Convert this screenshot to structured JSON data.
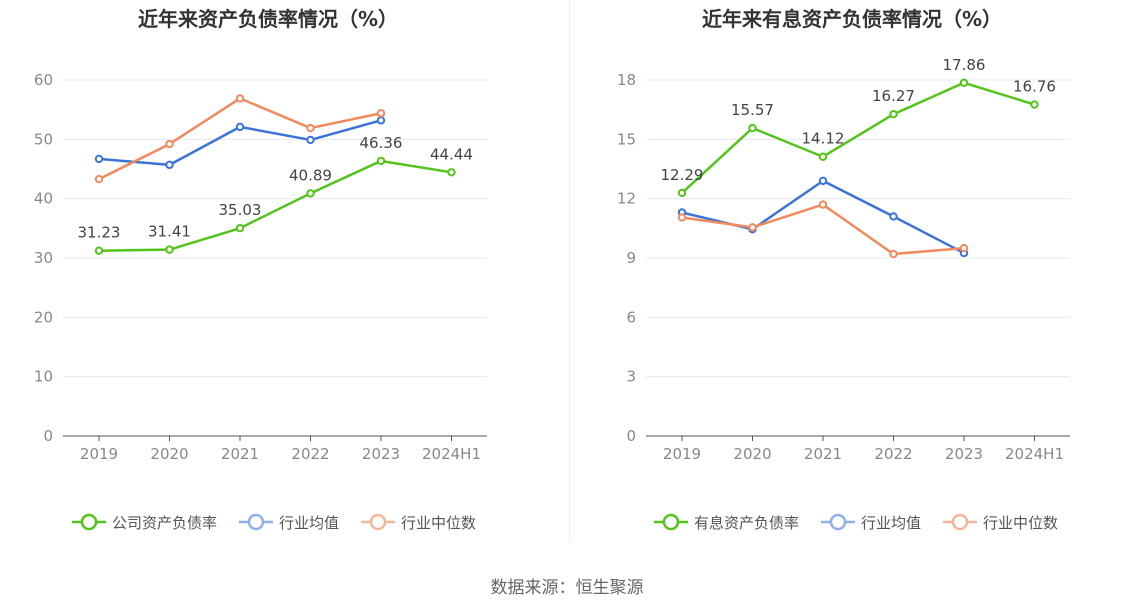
{
  "chart_data": [
    {
      "type": "line",
      "title": "近年来资产负债率情况（%）",
      "categories": [
        "2019",
        "2020",
        "2021",
        "2022",
        "2023",
        "2024H1"
      ],
      "ylim": [
        0,
        60
      ],
      "yticks": [
        0,
        10,
        20,
        30,
        40,
        50,
        60
      ],
      "grid": true,
      "legend_position": "bottom",
      "series": [
        {
          "name": "公司资产负债率",
          "color": "#52c41a",
          "labels": true,
          "values": [
            31.23,
            31.41,
            35.03,
            40.89,
            46.36,
            44.44
          ]
        },
        {
          "name": "行业均值",
          "color": "#3b73d9",
          "labels": false,
          "values": [
            46.7,
            45.7,
            52.1,
            49.9,
            53.2,
            null
          ]
        },
        {
          "name": "行业中位数",
          "color": "#f08a5d",
          "labels": false,
          "values": [
            43.3,
            49.2,
            56.9,
            51.9,
            54.4,
            null
          ]
        }
      ]
    },
    {
      "type": "line",
      "title": "近年来有息资产负债率情况（%）",
      "categories": [
        "2019",
        "2020",
        "2021",
        "2022",
        "2023",
        "2024H1"
      ],
      "ylim": [
        0,
        18
      ],
      "yticks": [
        0,
        3,
        6,
        9,
        12,
        15,
        18
      ],
      "grid": true,
      "legend_position": "bottom",
      "series": [
        {
          "name": "有息资产负债率",
          "color": "#52c41a",
          "labels": true,
          "values": [
            12.29,
            15.57,
            14.12,
            16.27,
            17.86,
            16.76
          ]
        },
        {
          "name": "行业均值",
          "color": "#3b73d9",
          "labels": false,
          "values": [
            11.3,
            10.45,
            12.9,
            11.1,
            9.25,
            null
          ]
        },
        {
          "name": "行业中位数",
          "color": "#f08a5d",
          "labels": false,
          "values": [
            11.05,
            10.55,
            11.7,
            9.2,
            9.5,
            null
          ]
        }
      ]
    }
  ],
  "source_text": "数据来源：恒生聚源"
}
